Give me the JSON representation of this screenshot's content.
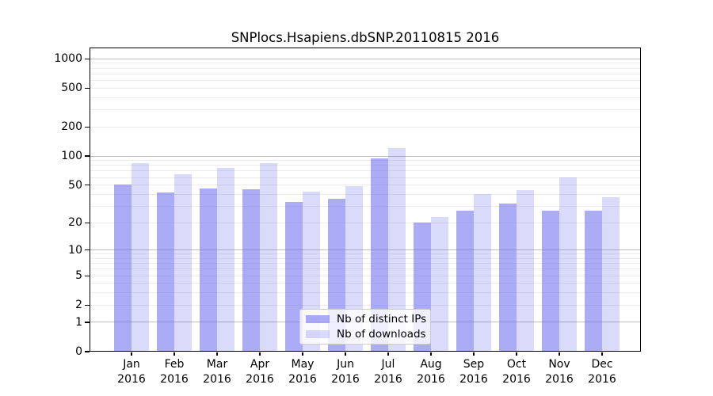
{
  "figure": {
    "title": "SNPlocs.Hsapiens.dbSNP.20110815 2016"
  },
  "chart_data": {
    "type": "bar",
    "title": "SNPlocs.Hsapiens.dbSNP.20110815 2016",
    "categories": [
      "Jan",
      "Feb",
      "Mar",
      "Apr",
      "May",
      "Jun",
      "Jul",
      "Aug",
      "Sep",
      "Oct",
      "Nov",
      "Dec"
    ],
    "category_year": "2016",
    "series": [
      {
        "name": "Nb of distinct IPs",
        "color": "rgba(102,102,238,0.55)",
        "values": [
          51,
          42,
          46,
          45,
          33,
          36,
          94,
          20,
          27,
          32,
          27,
          27
        ]
      },
      {
        "name": "Nb of downloads",
        "color": "rgba(102,102,238,0.24)",
        "values": [
          85,
          65,
          75,
          85,
          43,
          49,
          120,
          23,
          40,
          44,
          60,
          37
        ]
      }
    ],
    "y_scale": "log10(value+1)",
    "ylim": [
      0,
      1000
    ],
    "y_ticks": [
      0,
      1,
      2,
      5,
      10,
      20,
      50,
      100,
      200,
      500,
      1000
    ],
    "grid": {
      "orientation": "horizontal",
      "major_at": [
        1,
        10,
        100,
        1000
      ],
      "minor_multiples_per_decade": [
        2,
        3,
        4,
        5,
        6,
        7,
        8,
        9
      ]
    },
    "legend_position": "inside-bottom-center"
  },
  "colors": {
    "bar_distinct_ips": "rgba(102,102,238,0.55)",
    "bar_downloads": "rgba(102,102,238,0.24)",
    "grid_major": "#bdbdbd",
    "grid_minor": "#ececec",
    "axis": "#000000",
    "legend_border": "#cccccc"
  }
}
